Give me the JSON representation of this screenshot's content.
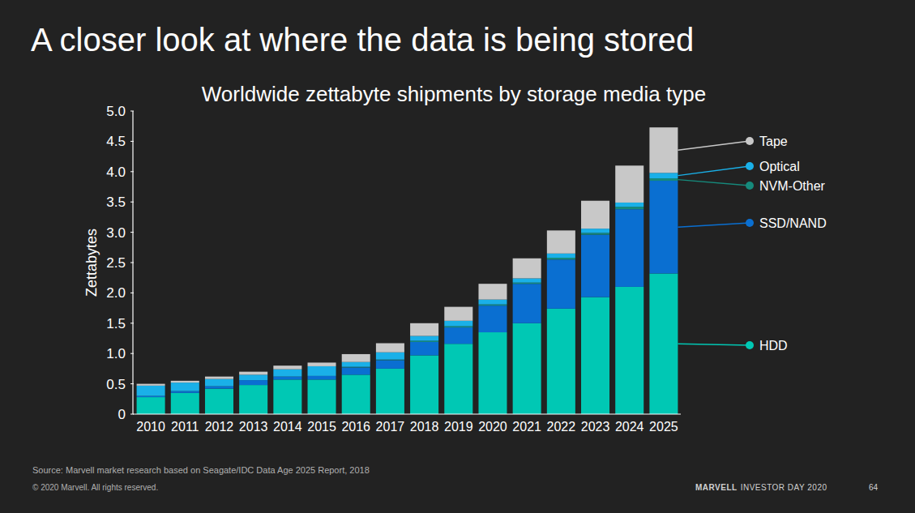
{
  "page": {
    "heading": "A closer look at where the data is being stored",
    "source": "Source: Marvell market research based on Seagate/IDC Data Age 2025 Report, 2018",
    "copyright": "© 2020 Marvell. All rights reserved.",
    "footer_brand": "MARVELL",
    "footer_event": "INVESTOR DAY 2020",
    "page_number": "64"
  },
  "chart_data": {
    "type": "bar",
    "title": "Worldwide zettabyte shipments by storage media type",
    "y_label": "Zettabytes",
    "stacked": true,
    "legend": "right",
    "grid": false,
    "categories": [
      "2010",
      "2011",
      "2012",
      "2013",
      "2014",
      "2015",
      "2016",
      "2017",
      "2018",
      "2019",
      "2020",
      "2021",
      "2022",
      "2023",
      "2024",
      "2025"
    ],
    "series": [
      {
        "name": "HDD",
        "color": "#00c8b4",
        "values": [
          0.28,
          0.35,
          0.42,
          0.48,
          0.57,
          0.57,
          0.65,
          0.75,
          0.97,
          1.16,
          1.35,
          1.5,
          1.74,
          1.93,
          2.1,
          2.32
        ]
      },
      {
        "name": "SSD/NAND",
        "color": "#0a6fd1",
        "values": [
          0.02,
          0.03,
          0.04,
          0.08,
          0.05,
          0.06,
          0.12,
          0.14,
          0.22,
          0.27,
          0.44,
          0.65,
          0.81,
          1.03,
          1.28,
          1.53
        ]
      },
      {
        "name": "NVM-Other",
        "color": "#168a7c",
        "values": [
          0,
          0,
          0,
          0,
          0,
          0,
          0.01,
          0.01,
          0.02,
          0.02,
          0.02,
          0.02,
          0.03,
          0.03,
          0.04,
          0.04
        ]
      },
      {
        "name": "Optical",
        "color": "#1ab0e8",
        "values": [
          0.17,
          0.14,
          0.12,
          0.09,
          0.12,
          0.16,
          0.08,
          0.12,
          0.08,
          0.09,
          0.08,
          0.07,
          0.07,
          0.07,
          0.07,
          0.09
        ]
      },
      {
        "name": "Tape",
        "color": "#c8c8c8",
        "values": [
          0.03,
          0.03,
          0.04,
          0.05,
          0.06,
          0.06,
          0.13,
          0.15,
          0.21,
          0.23,
          0.26,
          0.33,
          0.38,
          0.46,
          0.61,
          0.75
        ]
      }
    ],
    "ylim": [
      0,
      5
    ],
    "yticks": [
      0,
      0.5,
      {
        "value": 1,
        "label": "1.0"
      },
      1.5,
      {
        "value": 2,
        "label": "2.0"
      },
      2.5,
      {
        "value": 3,
        "label": "3.0"
      },
      3.5,
      {
        "value": 4,
        "label": "4.0"
      },
      4.5,
      {
        "value": 5,
        "label": "5.0"
      }
    ]
  }
}
